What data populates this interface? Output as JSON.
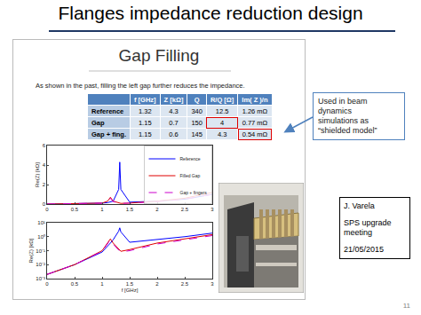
{
  "slide": {
    "title": "Flanges impedance reduction design",
    "page": "11",
    "callout": [
      "Used in beam",
      "dynamics",
      "simulations as",
      "“shielded model”"
    ],
    "credit": [
      "J. Varela",
      "SPS upgrade meeting",
      "21/05/2015"
    ]
  },
  "inner_slide": {
    "title": "Gap Filling",
    "text": "As shown in the past, filling the left gap further reduces the impedance.",
    "table": {
      "header": [
        "f [GHz]",
        "Z [kΩ]",
        "Q",
        "R/Q [Ω]",
        "Im( Z )/n"
      ],
      "rows": [
        {
          "label": "Reference",
          "cells": [
            "1.32",
            "4.3",
            "340",
            "12.5",
            "1.26 mΩ"
          ]
        },
        {
          "label": "Gap",
          "cells": [
            "1.15",
            "0.7",
            "150",
            {
              "text": "4",
              "highlight": true
            },
            "0.77 mΩ"
          ]
        },
        {
          "label": "Gap + fing.",
          "cells": [
            "1.15",
            "0.6",
            "145",
            "4.3",
            {
              "text": "0.54 mΩ",
              "highlight": true
            }
          ]
        }
      ]
    }
  },
  "chart_data": [
    {
      "type": "line",
      "ylabel": "Re(Z) [kΩ]",
      "x": [
        0,
        0.5,
        1.0,
        1.1,
        1.15,
        1.2,
        1.3,
        1.32,
        1.34,
        1.5,
        2.0,
        2.5,
        3.0
      ],
      "xlim": [
        0,
        3
      ],
      "xticks": [
        0,
        0.5,
        1,
        1.5,
        2,
        2.5,
        3
      ],
      "ylim": [
        0,
        6
      ],
      "yticks": [
        0,
        2,
        4,
        6
      ],
      "grid": false,
      "legend": "top-right",
      "series": [
        {
          "name": "Reference",
          "color": "#0000ff",
          "line_style": "solid",
          "values": [
            0,
            0.02,
            0.1,
            0.15,
            0.2,
            0.3,
            1.5,
            4.3,
            1.5,
            0.2,
            0.3,
            0.5,
            1.0
          ]
        },
        {
          "name": "Filled Gap",
          "color": "#e00000",
          "line_style": "solid",
          "values": [
            0,
            0.02,
            0.1,
            0.3,
            0.7,
            0.3,
            0.1,
            0.08,
            0.07,
            0.1,
            0.3,
            0.6,
            1.2
          ]
        },
        {
          "name": "Gap + fingers",
          "color": "#cc00cc",
          "line_style": "dashed",
          "values": [
            0,
            0.02,
            0.1,
            0.25,
            0.6,
            0.25,
            0.1,
            0.08,
            0.07,
            0.1,
            0.25,
            0.5,
            1.0
          ]
        }
      ]
    },
    {
      "type": "line",
      "xlabel": "f [GHz]",
      "ylabel": "Re(Z) [kΩ]",
      "log": "y",
      "x": [
        0,
        0.5,
        1.0,
        1.1,
        1.15,
        1.2,
        1.3,
        1.32,
        1.34,
        1.5,
        2.0,
        2.5,
        3.0
      ],
      "xlim": [
        0,
        3
      ],
      "xticks": [
        0,
        0.5,
        1,
        1.5,
        2,
        2.5,
        3
      ],
      "ylim": [
        0.001,
        10
      ],
      "yticks": [
        {
          "value": 0.001,
          "label": "10⁻³"
        },
        {
          "value": 0.01,
          "label": "10⁻²"
        },
        {
          "value": 0.1,
          "label": "10⁻¹"
        },
        {
          "value": 1,
          "label": "10⁰"
        },
        {
          "value": 10,
          "label": "10¹"
        }
      ],
      "grid": false,
      "series": [
        {
          "color": "#0000ff",
          "line_style": "solid",
          "values": [
            0.002,
            0.01,
            0.08,
            0.2,
            0.35,
            0.6,
            2.5,
            4.3,
            2.2,
            0.4,
            0.6,
            1.0,
            1.8
          ]
        },
        {
          "color": "#e00000",
          "line_style": "solid",
          "values": [
            0.002,
            0.01,
            0.1,
            0.35,
            0.7,
            0.35,
            0.12,
            0.1,
            0.09,
            0.12,
            0.35,
            0.7,
            1.4
          ]
        },
        {
          "color": "#cc00cc",
          "line_style": "dashed",
          "values": [
            0.002,
            0.01,
            0.09,
            0.3,
            0.6,
            0.3,
            0.1,
            0.09,
            0.08,
            0.1,
            0.3,
            0.6,
            1.2
          ]
        }
      ]
    }
  ]
}
